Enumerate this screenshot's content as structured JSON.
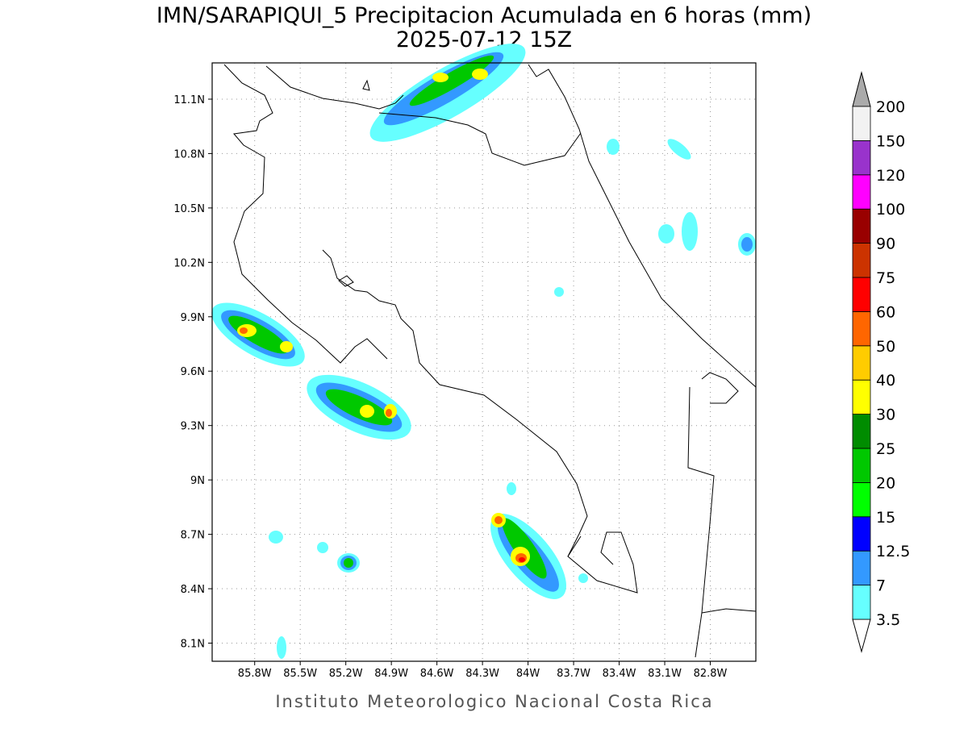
{
  "chart_data": {
    "type": "map",
    "title": "IMN/SARAPIQUI_5 Precipitacion Acumulada en 6 horas (mm)",
    "subtitle": "2025-07-12 15Z",
    "footer": "Instituto Meteorologico Nacional Costa Rica",
    "xlim": [
      -86.08,
      -82.5
    ],
    "ylim": [
      8.0,
      11.3
    ],
    "grid": true,
    "xticks": [
      {
        "value": -85.8,
        "label": "85.8W"
      },
      {
        "value": -85.5,
        "label": "85.5W"
      },
      {
        "value": -85.2,
        "label": "85.2W"
      },
      {
        "value": -84.9,
        "label": "84.9W"
      },
      {
        "value": -84.6,
        "label": "84.6W"
      },
      {
        "value": -84.3,
        "label": "84.3W"
      },
      {
        "value": -84,
        "label": "84W"
      },
      {
        "value": -83.7,
        "label": "83.7W"
      },
      {
        "value": -83.4,
        "label": "83.4W"
      },
      {
        "value": -83.1,
        "label": "83.1W"
      },
      {
        "value": -82.8,
        "label": "82.8W"
      }
    ],
    "yticks": [
      {
        "value": 8.1,
        "label": "8.1N"
      },
      {
        "value": 8.4,
        "label": "8.4N"
      },
      {
        "value": 8.7,
        "label": "8.7N"
      },
      {
        "value": 9,
        "label": "9N"
      },
      {
        "value": 9.3,
        "label": "9.3N"
      },
      {
        "value": 9.6,
        "label": "9.6N"
      },
      {
        "value": 9.9,
        "label": "9.9N"
      },
      {
        "value": 10.2,
        "label": "10.2N"
      },
      {
        "value": 10.5,
        "label": "10.5N"
      },
      {
        "value": 10.8,
        "label": "10.8N"
      },
      {
        "value": 11.1,
        "label": "11.1N"
      }
    ],
    "levels": [
      3.5,
      7,
      12.5,
      15,
      20,
      25,
      30,
      40,
      50,
      60,
      75,
      90,
      100,
      120,
      150,
      200
    ],
    "colors": [
      "#66ffff",
      "#3399ff",
      "#0000ff",
      "#00ff00",
      "#00c800",
      "#008c00",
      "#ffff00",
      "#ffcc00",
      "#ff6600",
      "#ff0000",
      "#cc3300",
      "#990000",
      "#ff00ff",
      "#9933cc",
      "#f2f2f2"
    ],
    "over_color": "#aaaaaa",
    "under_color": "#ffffff"
  }
}
